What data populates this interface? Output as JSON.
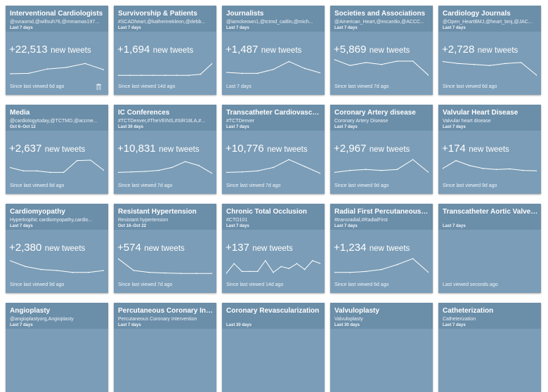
{
  "cards": [
    {
      "title": "Interventional Cardiologists",
      "sub": "@svraomd,@willsuh76,@mmamas197...",
      "range": "Last 7 days",
      "count": "+22,513",
      "label": "new tweets",
      "foot": "Since last viewed 6d ago",
      "trash": true,
      "spark": [
        0.18,
        0.2,
        0.42,
        0.5,
        0.7,
        0.38
      ]
    },
    {
      "title": "Survivorship & Patients",
      "sub": "#SCADheart,@katherinekleon,@debb...",
      "range": "Last 7 days",
      "count": "+1,694",
      "label": "new tweets",
      "foot": "Since last viewed 14d ago",
      "spark": [
        0.1,
        0.1,
        0.1,
        0.1,
        0.1,
        0.1,
        0.1,
        0.15,
        0.7
      ]
    },
    {
      "title": "Journalists",
      "sub": "@iamckeown1,@tctmd_caitlin,@mich...",
      "range": "Last 7 days",
      "count": "+1,487",
      "label": "new tweets",
      "foot": "Last 7 days",
      "spark": [
        0.25,
        0.2,
        0.2,
        0.4,
        0.8,
        0.45,
        0.22
      ]
    },
    {
      "title": "Societies and Associations",
      "sub": "@American_Heart,@escardio,@ACCC...",
      "range": "Last 7 days",
      "count": "+5,869",
      "label": "new tweets",
      "foot": "Since last viewed 7d ago",
      "spark": [
        0.9,
        0.6,
        0.75,
        0.65,
        0.82,
        0.82,
        0.1
      ]
    },
    {
      "title": "Cardiology Journals",
      "sub": "@Open_HeartBMJ,@heart_bmj,@JAC...",
      "range": "Last 7 days",
      "count": "+2,728",
      "label": "new tweets",
      "foot": "Since last viewed 6d ago",
      "spark": [
        0.8,
        0.7,
        0.65,
        0.6,
        0.7,
        0.75,
        0.1
      ]
    },
    {
      "title": "Media",
      "sub": "@cardiologytoday,@TCTMD,@accme...",
      "range": "Oct 6–Oct 12",
      "count": "+2,637",
      "label": "new tweets",
      "foot": "Since last viewed 8d ago",
      "spark": [
        0.45,
        0.28,
        0.28,
        0.2,
        0.2,
        0.8,
        0.82,
        0.3
      ]
    },
    {
      "title": "IC Conferences",
      "sub": "#TCTDenver,#TheVEINS,#SIR18LA,#...",
      "range": "Last 30 days",
      "count": "+10,831",
      "label": "new tweets",
      "foot": "Since last viewed 7d ago",
      "spark": [
        0.2,
        0.22,
        0.25,
        0.3,
        0.45,
        0.75,
        0.55,
        0.15
      ]
    },
    {
      "title": "Transcatheter Cardiovascul...",
      "sub": "#TCTDenver",
      "range": "Last 7 days",
      "count": "+10,776",
      "label": "new tweets",
      "foot": "Since last viewed 7d ago",
      "spark": [
        0.2,
        0.22,
        0.28,
        0.45,
        0.85,
        0.5,
        0.15
      ]
    },
    {
      "title": "Coronary Artery disease",
      "sub": "Coronary Artery Disease",
      "range": "Last 7 days",
      "count": "+2,967",
      "label": "new tweets",
      "foot": "Since last viewed 9d ago",
      "spark": [
        0.2,
        0.3,
        0.35,
        0.3,
        0.35,
        0.85,
        0.2
      ]
    },
    {
      "title": "Valvular Heart Disease",
      "sub": "Valvular heart disease",
      "range": "Last 7 days",
      "count": "+174",
      "label": "new tweets",
      "foot": "Since last viewed 9d ago",
      "spark": [
        0.4,
        0.8,
        0.55,
        0.4,
        0.35,
        0.38,
        0.3,
        0.28
      ]
    },
    {
      "title": "Cardiomyopathy",
      "sub": "Hypertrophic cardiomyopathy,cardio...",
      "range": "Last 7 days",
      "count": "+2,380",
      "label": "new tweets",
      "foot": "Since last viewed 9d ago",
      "spark": [
        0.75,
        0.45,
        0.3,
        0.25,
        0.15,
        0.15,
        0.25
      ]
    },
    {
      "title": "Resistant Hypertension",
      "sub": "Resistant hypertension",
      "range": "Oct 16–Oct 22",
      "count": "+574",
      "label": "new tweets",
      "foot": "Since last viewed 7d ago",
      "spark": [
        0.85,
        0.25,
        0.15,
        0.12,
        0.1,
        0.1,
        0.1
      ]
    },
    {
      "title": "Chronic Total Occlusion",
      "sub": "#CTO101",
      "range": "Last 7 days",
      "count": "+137",
      "label": "new tweets",
      "foot": "Since last viewed 14d ago",
      "spark": [
        0.1,
        0.6,
        0.2,
        0.2,
        0.2,
        0.75,
        0.15,
        0.45,
        0.35,
        0.6,
        0.3,
        0.75,
        0.6
      ]
    },
    {
      "title": "Radial First Percutaneous C...",
      "sub": "#transradial,#RadialFirst",
      "range": "Last 7 days",
      "count": "+1,234",
      "label": "new tweets",
      "foot": "Since last viewed 6d ago",
      "spark": [
        0.15,
        0.15,
        0.2,
        0.3,
        0.55,
        0.85,
        0.15
      ]
    },
    {
      "title": "Transcatheter Aortic Valve I...",
      "sub": "",
      "range": "Last 7 days",
      "count": "",
      "label": "",
      "foot": "Last viewed seconds ago",
      "spark": []
    },
    {
      "title": "Angioplasty",
      "sub": "@angioplastyorg,Angioplasty",
      "range": "Last 7 days",
      "count": "",
      "label": "",
      "foot": "",
      "spark": []
    },
    {
      "title": "Percutaneous Coronary Inte...",
      "sub": "Percutaneous Coronary Intervention",
      "range": "Last 7 days",
      "count": "",
      "label": "",
      "foot": "",
      "spark": []
    },
    {
      "title": "Coronary Revascularization",
      "sub": "",
      "range": "Last 30 days",
      "count": "",
      "label": "",
      "foot": "",
      "spark": []
    },
    {
      "title": "Valvuloplasty",
      "sub": "Valvuloplasty",
      "range": "Last 30 days",
      "count": "",
      "label": "",
      "foot": "",
      "spark": []
    },
    {
      "title": "Catheterization",
      "sub": "Catheterization",
      "range": "Last 7 days",
      "count": "",
      "label": "",
      "foot": "",
      "spark": []
    }
  ]
}
